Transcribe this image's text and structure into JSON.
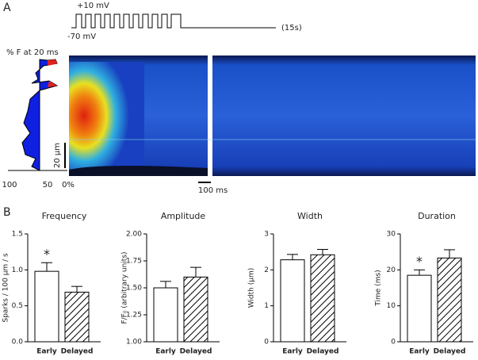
{
  "panel_a": {
    "label": "A",
    "protocol_high": "+10 mV",
    "protocol_low": "-70 mV",
    "protocol_duration": "(15s)",
    "profile_title": "% F at 20 ms",
    "profile_ticks": [
      "100",
      "50",
      "0%"
    ],
    "space_scale": "20 µm",
    "time_scale": "100 ms"
  },
  "panel_b": {
    "label": "B"
  },
  "chart_data": [
    {
      "type": "bar",
      "title": "Frequency",
      "ylabel": "Sparks / 100 µm / s",
      "categories": [
        "Early",
        "Delayed"
      ],
      "values": [
        0.98,
        0.69
      ],
      "errors": [
        0.12,
        0.08
      ],
      "annotations": [
        "*",
        null
      ],
      "patterns": [
        "none",
        "hatch"
      ],
      "ylim": [
        0,
        1.5
      ],
      "yticks": [
        {
          "value": 0,
          "label": "0.0"
        },
        {
          "value": 0.5,
          "label": "0.5"
        },
        {
          "value": 1,
          "label": "1.0"
        },
        {
          "value": 1.5,
          "label": "1.5"
        }
      ]
    },
    {
      "type": "bar",
      "title": "Amplitude",
      "ylabel": "F/F₀ (arbitrary units)",
      "categories": [
        "Early",
        "Delayed"
      ],
      "values": [
        1.5,
        1.6
      ],
      "errors": [
        0.06,
        0.09
      ],
      "annotations": [
        null,
        null
      ],
      "patterns": [
        "none",
        "hatch"
      ],
      "ylim": [
        1,
        2
      ],
      "yticks": [
        {
          "value": 1,
          "label": "1.00"
        },
        {
          "value": 1.25,
          "label": "1.25"
        },
        {
          "value": 1.5,
          "label": "1.50"
        },
        {
          "value": 1.75,
          "label": "1.75"
        },
        {
          "value": 2,
          "label": "2.00"
        }
      ]
    },
    {
      "type": "bar",
      "title": "Width",
      "ylabel": "Width (µm)",
      "categories": [
        "Early",
        "Delayed"
      ],
      "values": [
        2.28,
        2.42
      ],
      "errors": [
        0.15,
        0.15
      ],
      "annotations": [
        null,
        null
      ],
      "patterns": [
        "none",
        "hatch"
      ],
      "ylim": [
        0,
        3
      ],
      "yticks": [
        0,
        1,
        2,
        3
      ]
    },
    {
      "type": "bar",
      "title": "Duration",
      "ylabel": "Time (ms)",
      "categories": [
        "Early",
        "Delayed"
      ],
      "values": [
        18.5,
        23.3
      ],
      "errors": [
        1.5,
        2.3
      ],
      "annotations": [
        "*",
        null
      ],
      "patterns": [
        "none",
        "hatch"
      ],
      "ylim": [
        0,
        30
      ],
      "yticks": [
        0,
        10,
        20,
        30
      ]
    }
  ]
}
